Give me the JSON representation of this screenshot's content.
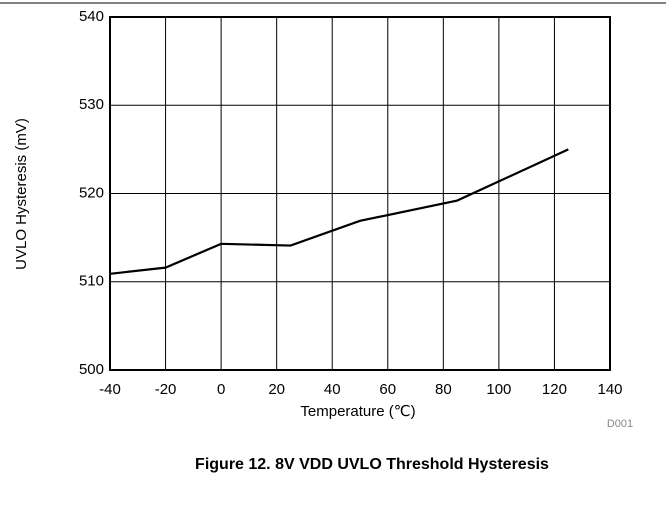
{
  "chart_data": {
    "type": "line",
    "xlabel": "Temperature (℃)",
    "ylabel": "UVLO Hysteresis (mV)",
    "note": "D001",
    "caption": "Figure 12. 8V VDD UVLO Threshold Hysteresis",
    "x": [
      -40,
      -20,
      0,
      25,
      50,
      85,
      125
    ],
    "series": [
      {
        "color": "#000000",
        "values": [
          510.9,
          511.6,
          514.3,
          514.1,
          516.9,
          519.2,
          525.0
        ]
      }
    ],
    "xlim": [
      -40,
      140
    ],
    "xticks": [
      -40,
      -20,
      0,
      20,
      40,
      60,
      80,
      100,
      120,
      140
    ],
    "ylim": [
      500,
      540
    ],
    "yticks": [
      500,
      510,
      520,
      530,
      540
    ],
    "grid": true
  }
}
